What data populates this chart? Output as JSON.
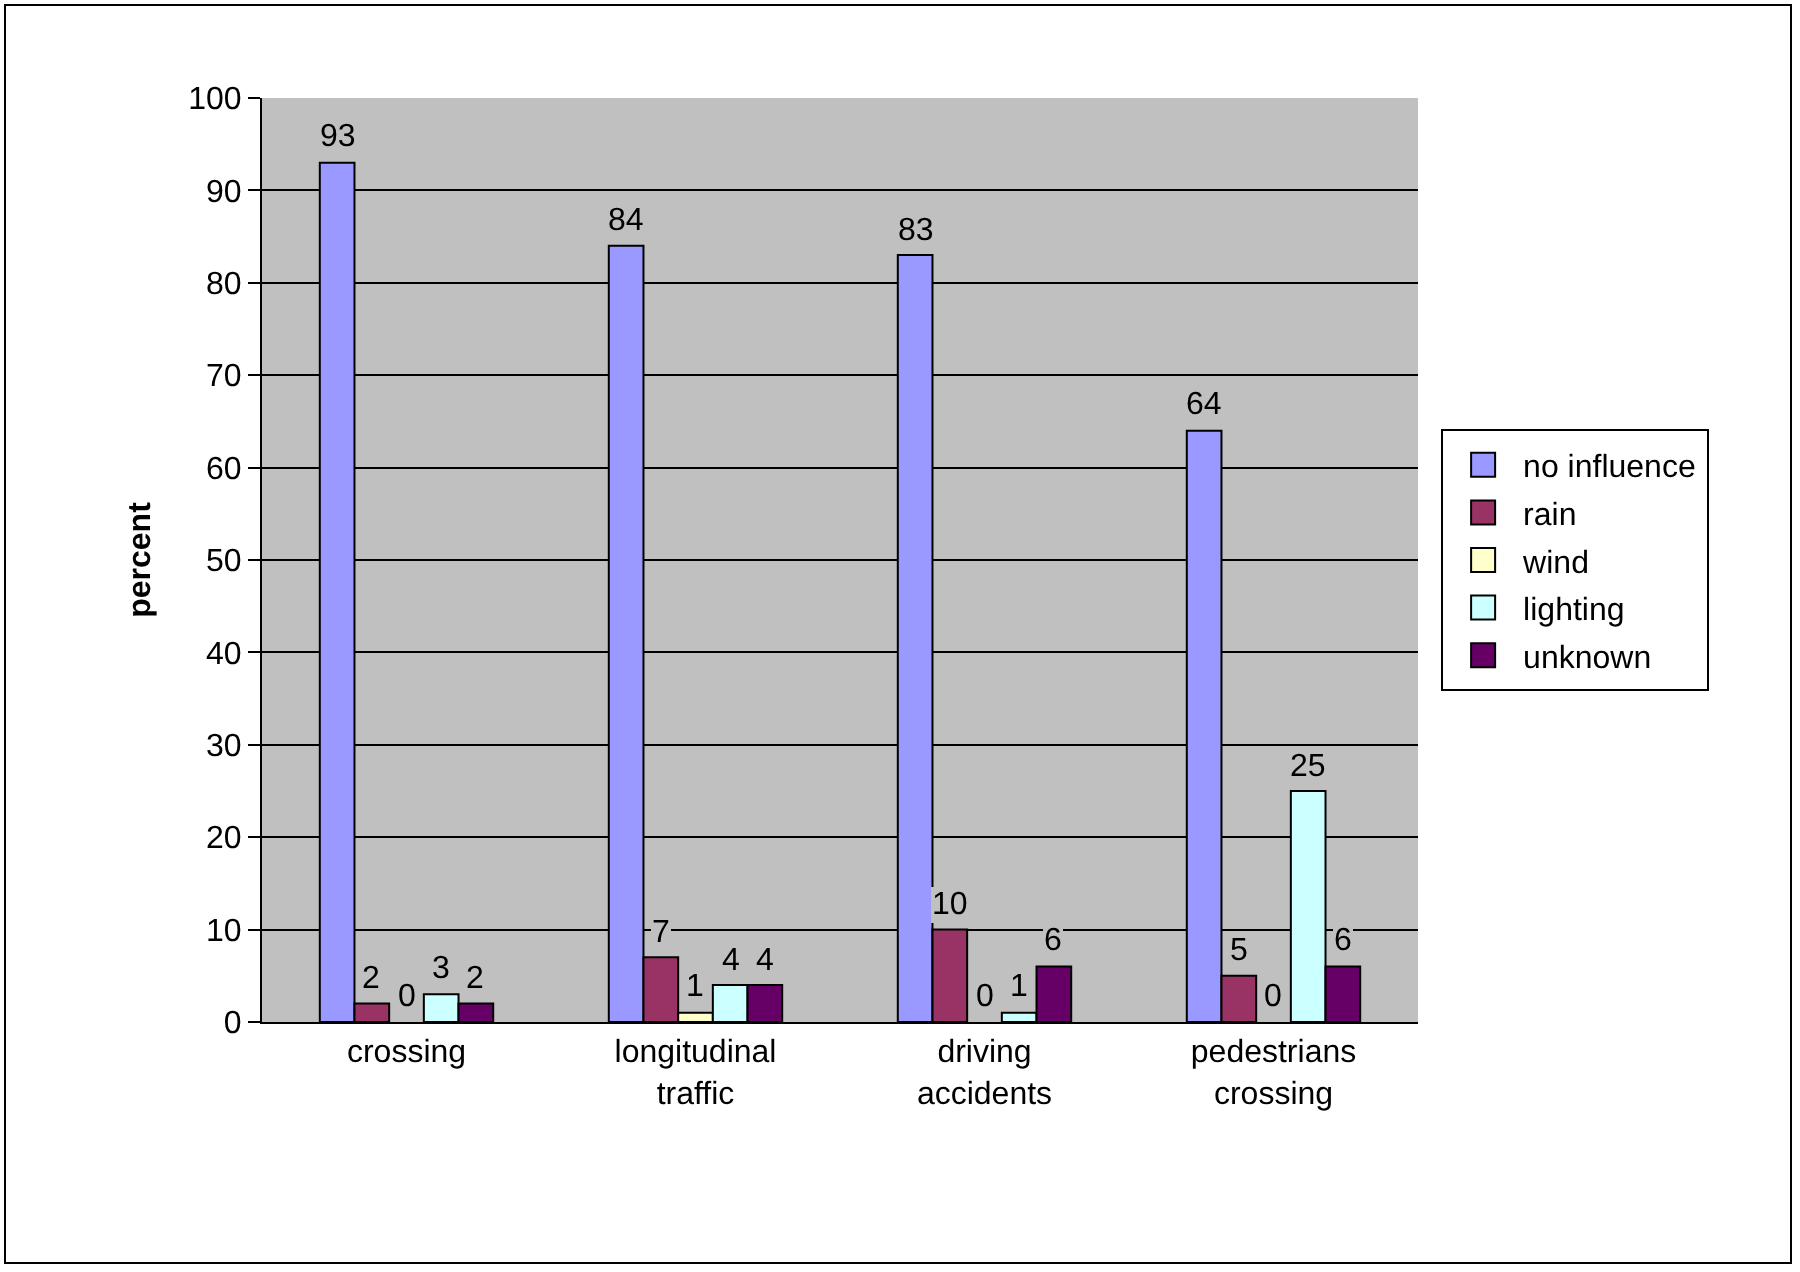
{
  "chart_data": {
    "type": "bar",
    "ylabel": "percent",
    "categories": [
      "crossing",
      "longitudinal\ntraffic",
      "driving\naccidents",
      "pedestrians\ncrossing"
    ],
    "series": [
      {
        "name": "no influence",
        "color": "#9999ff",
        "values": [
          93,
          84,
          83,
          64
        ]
      },
      {
        "name": "rain",
        "color": "#993366",
        "values": [
          2,
          7,
          10,
          5
        ]
      },
      {
        "name": "wind",
        "color": "#ffffcc",
        "values": [
          0,
          1,
          0,
          0
        ]
      },
      {
        "name": "lighting",
        "color": "#ccffff",
        "values": [
          3,
          4,
          1,
          25
        ]
      },
      {
        "name": "unknown",
        "color": "#660066",
        "values": [
          2,
          4,
          6,
          6
        ]
      }
    ],
    "ylim": [
      0,
      100
    ],
    "yticks": [
      0,
      10,
      20,
      30,
      40,
      50,
      60,
      70,
      80,
      90,
      100
    ],
    "grid": "y",
    "legend": "right",
    "data_labels": true
  }
}
